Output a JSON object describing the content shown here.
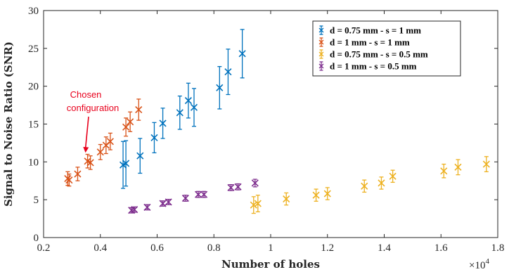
{
  "chart_data": {
    "type": "scatter",
    "title": "",
    "xlabel": "Number of holes",
    "ylabel": "Signal to Noise Ratio (SNR)",
    "x_multiplier_label": "×10",
    "x_multiplier_exponent": "4",
    "xlim": [
      0.2,
      1.8
    ],
    "ylim": [
      0,
      30
    ],
    "xticks": [
      "0.2",
      "0.4",
      "0.6",
      "0.8",
      "1",
      "1.2",
      "1.4",
      "1.6",
      "1.8"
    ],
    "yticks": [
      "0",
      "5",
      "10",
      "15",
      "20",
      "25",
      "30"
    ],
    "grid": false,
    "legend_position": "top-right",
    "annotation": {
      "lines": [
        "Chosen",
        "configuration"
      ],
      "color": "#e8001c",
      "target": [
        0.355,
        10.1
      ]
    },
    "series": [
      {
        "name": "d = 0.75 mm - s = 1 mm",
        "color": "#0072bd",
        "marker": "x",
        "points": [
          {
            "x": 0.48,
            "y": 9.6,
            "err": 3.1
          },
          {
            "x": 0.49,
            "y": 9.8,
            "err": 3.0
          },
          {
            "x": 0.54,
            "y": 10.8,
            "err": 2.3
          },
          {
            "x": 0.59,
            "y": 13.2,
            "err": 2.0
          },
          {
            "x": 0.62,
            "y": 15.1,
            "err": 2.0
          },
          {
            "x": 0.68,
            "y": 16.5,
            "err": 2.2
          },
          {
            "x": 0.71,
            "y": 18.1,
            "err": 2.3
          },
          {
            "x": 0.73,
            "y": 17.2,
            "err": 2.5
          },
          {
            "x": 0.82,
            "y": 19.8,
            "err": 2.8
          },
          {
            "x": 0.85,
            "y": 21.9,
            "err": 3.0
          },
          {
            "x": 0.9,
            "y": 24.3,
            "err": 3.2
          }
        ]
      },
      {
        "name": "d = 1 mm - s = 1 mm",
        "color": "#d95319",
        "marker": "x",
        "points": [
          {
            "x": 0.285,
            "y": 7.8,
            "err": 0.9
          },
          {
            "x": 0.29,
            "y": 7.6,
            "err": 0.8
          },
          {
            "x": 0.32,
            "y": 8.4,
            "err": 0.9
          },
          {
            "x": 0.355,
            "y": 10.1,
            "err": 0.9
          },
          {
            "x": 0.365,
            "y": 9.9,
            "err": 0.9
          },
          {
            "x": 0.4,
            "y": 11.3,
            "err": 1.0
          },
          {
            "x": 0.42,
            "y": 12.2,
            "err": 1.1
          },
          {
            "x": 0.435,
            "y": 12.7,
            "err": 1.1
          },
          {
            "x": 0.49,
            "y": 14.6,
            "err": 1.2
          },
          {
            "x": 0.505,
            "y": 15.3,
            "err": 1.3
          },
          {
            "x": 0.535,
            "y": 16.9,
            "err": 1.4
          }
        ]
      },
      {
        "name": "d = 0.75 mm - s = 0.5 mm",
        "color": "#edb120",
        "marker": "x",
        "points": [
          {
            "x": 0.94,
            "y": 4.3,
            "err": 1.1
          },
          {
            "x": 0.955,
            "y": 4.5,
            "err": 1.1
          },
          {
            "x": 1.055,
            "y": 5.1,
            "err": 0.8
          },
          {
            "x": 1.16,
            "y": 5.6,
            "err": 0.8
          },
          {
            "x": 1.2,
            "y": 5.8,
            "err": 0.8
          },
          {
            "x": 1.33,
            "y": 6.8,
            "err": 0.8
          },
          {
            "x": 1.39,
            "y": 7.2,
            "err": 0.8
          },
          {
            "x": 1.43,
            "y": 8.1,
            "err": 0.8
          },
          {
            "x": 1.61,
            "y": 8.8,
            "err": 0.9
          },
          {
            "x": 1.66,
            "y": 9.3,
            "err": 1.0
          },
          {
            "x": 1.76,
            "y": 9.7,
            "err": 1.0
          }
        ]
      },
      {
        "name": "d = 1 mm - s = 0.5 mm",
        "color": "#7e2f8e",
        "marker": "x",
        "points": [
          {
            "x": 0.51,
            "y": 3.6,
            "err": 0.35
          },
          {
            "x": 0.52,
            "y": 3.7,
            "err": 0.35
          },
          {
            "x": 0.565,
            "y": 4.0,
            "err": 0.35
          },
          {
            "x": 0.62,
            "y": 4.5,
            "err": 0.35
          },
          {
            "x": 0.64,
            "y": 4.7,
            "err": 0.35
          },
          {
            "x": 0.7,
            "y": 5.2,
            "err": 0.4
          },
          {
            "x": 0.745,
            "y": 5.7,
            "err": 0.4
          },
          {
            "x": 0.765,
            "y": 5.7,
            "err": 0.4
          },
          {
            "x": 0.86,
            "y": 6.6,
            "err": 0.4
          },
          {
            "x": 0.885,
            "y": 6.7,
            "err": 0.4
          },
          {
            "x": 0.945,
            "y": 7.2,
            "err": 0.5
          }
        ]
      }
    ]
  }
}
